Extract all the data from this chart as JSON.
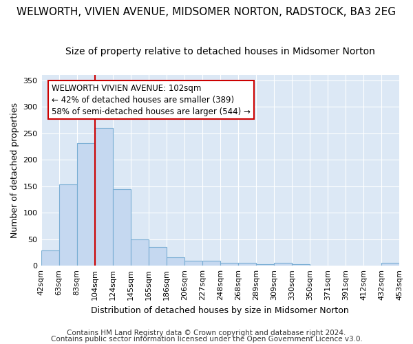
{
  "title": "WELWORTH, VIVIEN AVENUE, MIDSOMER NORTON, RADSTOCK, BA3 2EG",
  "subtitle": "Size of property relative to detached houses in Midsomer Norton",
  "xlabel": "Distribution of detached houses by size in Midsomer Norton",
  "ylabel": "Number of detached properties",
  "footer1": "Contains HM Land Registry data © Crown copyright and database right 2024.",
  "footer2": "Contains public sector information licensed under the Open Government Licence v3.0.",
  "annotation_line1": "WELWORTH VIVIEN AVENUE: 102sqm",
  "annotation_line2": "← 42% of detached houses are smaller (389)",
  "annotation_line3": "58% of semi-detached houses are larger (544) →",
  "bar_values": [
    29,
    154,
    232,
    260,
    144,
    49,
    35,
    16,
    9,
    9,
    5,
    5,
    3,
    5,
    3,
    0,
    0,
    0,
    0,
    5
  ],
  "categories": [
    "42sqm",
    "63sqm",
    "83sqm",
    "104sqm",
    "124sqm",
    "145sqm",
    "165sqm",
    "186sqm",
    "206sqm",
    "227sqm",
    "248sqm",
    "268sqm",
    "289sqm",
    "309sqm",
    "330sqm",
    "350sqm",
    "371sqm",
    "391sqm",
    "412sqm",
    "432sqm",
    "453sqm"
  ],
  "bar_color": "#c5d8f0",
  "bar_edge_color": "#7aaed4",
  "vline_x": 3,
  "vline_color": "#cc0000",
  "ylim": [
    0,
    360
  ],
  "yticks": [
    0,
    50,
    100,
    150,
    200,
    250,
    300,
    350
  ],
  "bg_color": "#dce8f5",
  "grid_color": "#ffffff",
  "fig_bg": "#ffffff",
  "annotation_box_color": "#ffffff",
  "annotation_box_edge": "#cc0000",
  "title_fontsize": 11,
  "subtitle_fontsize": 10,
  "axis_label_fontsize": 9,
  "tick_fontsize": 8,
  "annotation_fontsize": 8.5,
  "footer_fontsize": 7.5
}
